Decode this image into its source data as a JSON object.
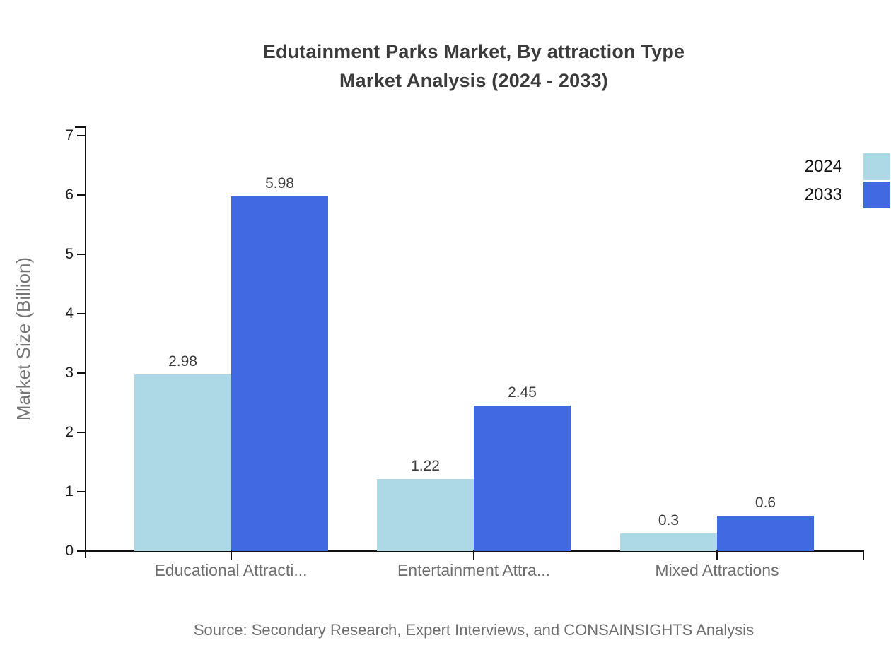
{
  "title": {
    "line1": "Edutainment Parks Market, By attraction Type",
    "line2": "Market Analysis (2024 - 2033)"
  },
  "source": "Source: Secondary Research, Expert Interviews, and CONSAINSIGHTS Analysis",
  "chart_data": {
    "type": "bar",
    "title": "Edutainment Parks Market, By attraction Type Market Analysis (2024 - 2033)",
    "categories": [
      "Educational Attracti...",
      "Entertainment Attra...",
      "Mixed Attractions"
    ],
    "series": [
      {
        "name": "2024",
        "color": "#add8e6",
        "values": [
          2.98,
          1.22,
          0.3
        ]
      },
      {
        "name": "2033",
        "color": "#4169e1",
        "values": [
          5.98,
          2.45,
          0.6
        ]
      }
    ],
    "value_labels": [
      "2.98",
      "5.98",
      "1.22",
      "2.45",
      "0.3",
      "0.6"
    ],
    "xlabel": "",
    "ylabel": "Market Size (Billion)",
    "ylim": [
      0,
      7
    ],
    "yticks": [
      0,
      1,
      2,
      3,
      4,
      5,
      6,
      7
    ],
    "grid": false,
    "legend_position": "top-right"
  }
}
